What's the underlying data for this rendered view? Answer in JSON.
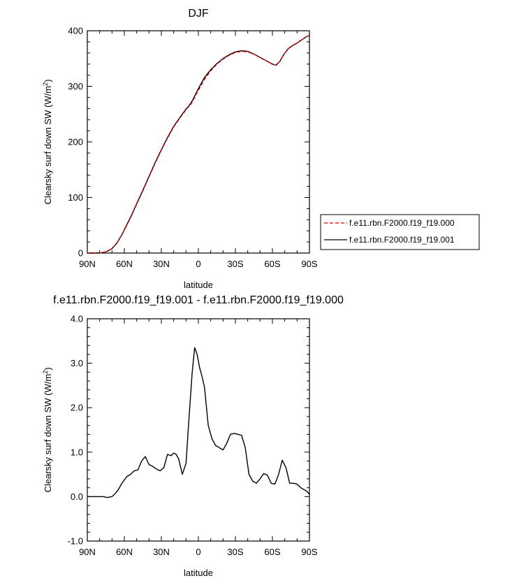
{
  "chart_data": [
    {
      "type": "line",
      "title": "DJF",
      "xlabel": "latitude",
      "ylabel": "Clearsky surf down SW (W/m",
      "ylabel_sup": "2",
      "ylabel_close": ")",
      "xlim": [
        90,
        -90
      ],
      "ylim": [
        0,
        400
      ],
      "x_ticks": [
        90,
        60,
        30,
        0,
        -30,
        -60,
        -90
      ],
      "x_tick_labels": [
        "90N",
        "60N",
        "30N",
        "0",
        "30S",
        "60S",
        "90S"
      ],
      "y_ticks": [
        0,
        100,
        200,
        300,
        400
      ],
      "y_tick_labels": [
        "0",
        "100",
        "200",
        "300",
        "400"
      ],
      "grid": false,
      "legend_position": "right",
      "series": [
        {
          "name": "f.e11.rbn.F2000.f19_f19.000",
          "color": "#cc0000",
          "style": "dashed",
          "x": [
            90,
            85,
            80,
            77,
            74,
            70,
            66,
            62,
            58,
            54,
            50,
            45,
            40,
            35,
            30,
            25,
            20,
            15,
            10,
            8,
            6,
            4,
            2,
            0,
            -5,
            -10,
            -15,
            -20,
            -25,
            -30,
            -35,
            -40,
            -45,
            -50,
            -55,
            -60,
            -63,
            -66,
            -70,
            -73,
            -76,
            -80,
            -84,
            -88,
            -90
          ],
          "values": [
            0,
            0,
            0,
            1,
            3,
            8,
            18,
            33,
            50,
            68,
            88,
            112,
            137,
            162,
            185,
            207,
            227,
            243,
            258,
            263,
            268,
            276,
            285,
            293,
            313,
            328,
            340,
            349,
            356,
            361,
            363,
            362,
            358,
            352,
            346,
            340,
            338,
            345,
            360,
            368,
            373,
            378,
            384,
            390,
            391
          ]
        },
        {
          "name": "f.e11.rbn.F2000.f19_f19.001",
          "color": "#000000",
          "style": "solid",
          "x": [
            90,
            85,
            80,
            77,
            74,
            70,
            66,
            62,
            58,
            54,
            50,
            45,
            40,
            35,
            30,
            25,
            20,
            15,
            10,
            8,
            6,
            4,
            2,
            0,
            -5,
            -10,
            -15,
            -20,
            -25,
            -30,
            -35,
            -40,
            -45,
            -50,
            -55,
            -60,
            -63,
            -66,
            -70,
            -73,
            -76,
            -80,
            -84,
            -88,
            -90
          ],
          "values": [
            0,
            0,
            0,
            1,
            3,
            8,
            18,
            33,
            51,
            69,
            89,
            113,
            138,
            163,
            186,
            208,
            228,
            244,
            259,
            264,
            270,
            278,
            287,
            296,
            316,
            330,
            341,
            350,
            357,
            362,
            364,
            363,
            358,
            352,
            346,
            340,
            338,
            345,
            360,
            368,
            373,
            378,
            384,
            390,
            391
          ]
        }
      ]
    },
    {
      "type": "line",
      "title": "f.e11.rbn.F2000.f19_f19.001 - f.e11.rbn.F2000.f19_f19.000",
      "xlabel": "latitude",
      "ylabel": "Clearsky surf down SW (W/m",
      "ylabel_sup": "2",
      "ylabel_close": ")",
      "xlim": [
        90,
        -90
      ],
      "ylim": [
        -1.0,
        4.0
      ],
      "x_ticks": [
        90,
        60,
        30,
        0,
        -30,
        -60,
        -90
      ],
      "x_tick_labels": [
        "90N",
        "60N",
        "30N",
        "0",
        "30S",
        "60S",
        "90S"
      ],
      "y_ticks": [
        -1.0,
        0.0,
        1.0,
        2.0,
        3.0,
        4.0
      ],
      "y_tick_labels": [
        "-1.0",
        "0.0",
        "1.0",
        "2.0",
        "3.0",
        "4.0"
      ],
      "grid": false,
      "series": [
        {
          "color": "#000000",
          "style": "solid",
          "x": [
            90,
            87,
            84,
            80,
            77,
            74,
            70,
            68,
            65,
            62,
            58,
            55,
            52,
            49,
            46,
            43,
            40,
            37,
            34,
            31,
            28,
            25,
            22,
            20,
            18,
            16,
            13,
            10,
            8,
            5,
            3,
            1,
            -1,
            -3,
            -5,
            -8,
            -11,
            -14,
            -17,
            -20,
            -23,
            -26,
            -29,
            -32,
            -35,
            -38,
            -41,
            -44,
            -47,
            -50,
            -53,
            -56,
            -59,
            -62,
            -65,
            -68,
            -71,
            -74,
            -77,
            -80,
            -83,
            -86,
            -88,
            -90
          ],
          "values": [
            0,
            0,
            0,
            0,
            0,
            -0.02,
            0,
            0.05,
            0.15,
            0.3,
            0.45,
            0.5,
            0.58,
            0.6,
            0.8,
            0.9,
            0.72,
            0.68,
            0.62,
            0.58,
            0.65,
            0.95,
            0.92,
            0.98,
            0.95,
            0.85,
            0.5,
            0.75,
            1.6,
            2.8,
            3.35,
            3.2,
            2.9,
            2.7,
            2.45,
            1.6,
            1.3,
            1.15,
            1.1,
            1.05,
            1.2,
            1.4,
            1.42,
            1.4,
            1.38,
            1.1,
            0.5,
            0.35,
            0.3,
            0.4,
            0.52,
            0.48,
            0.3,
            0.28,
            0.5,
            0.82,
            0.65,
            0.3,
            0.3,
            0.28,
            0.2,
            0.15,
            0.12,
            0.05
          ]
        }
      ]
    }
  ]
}
